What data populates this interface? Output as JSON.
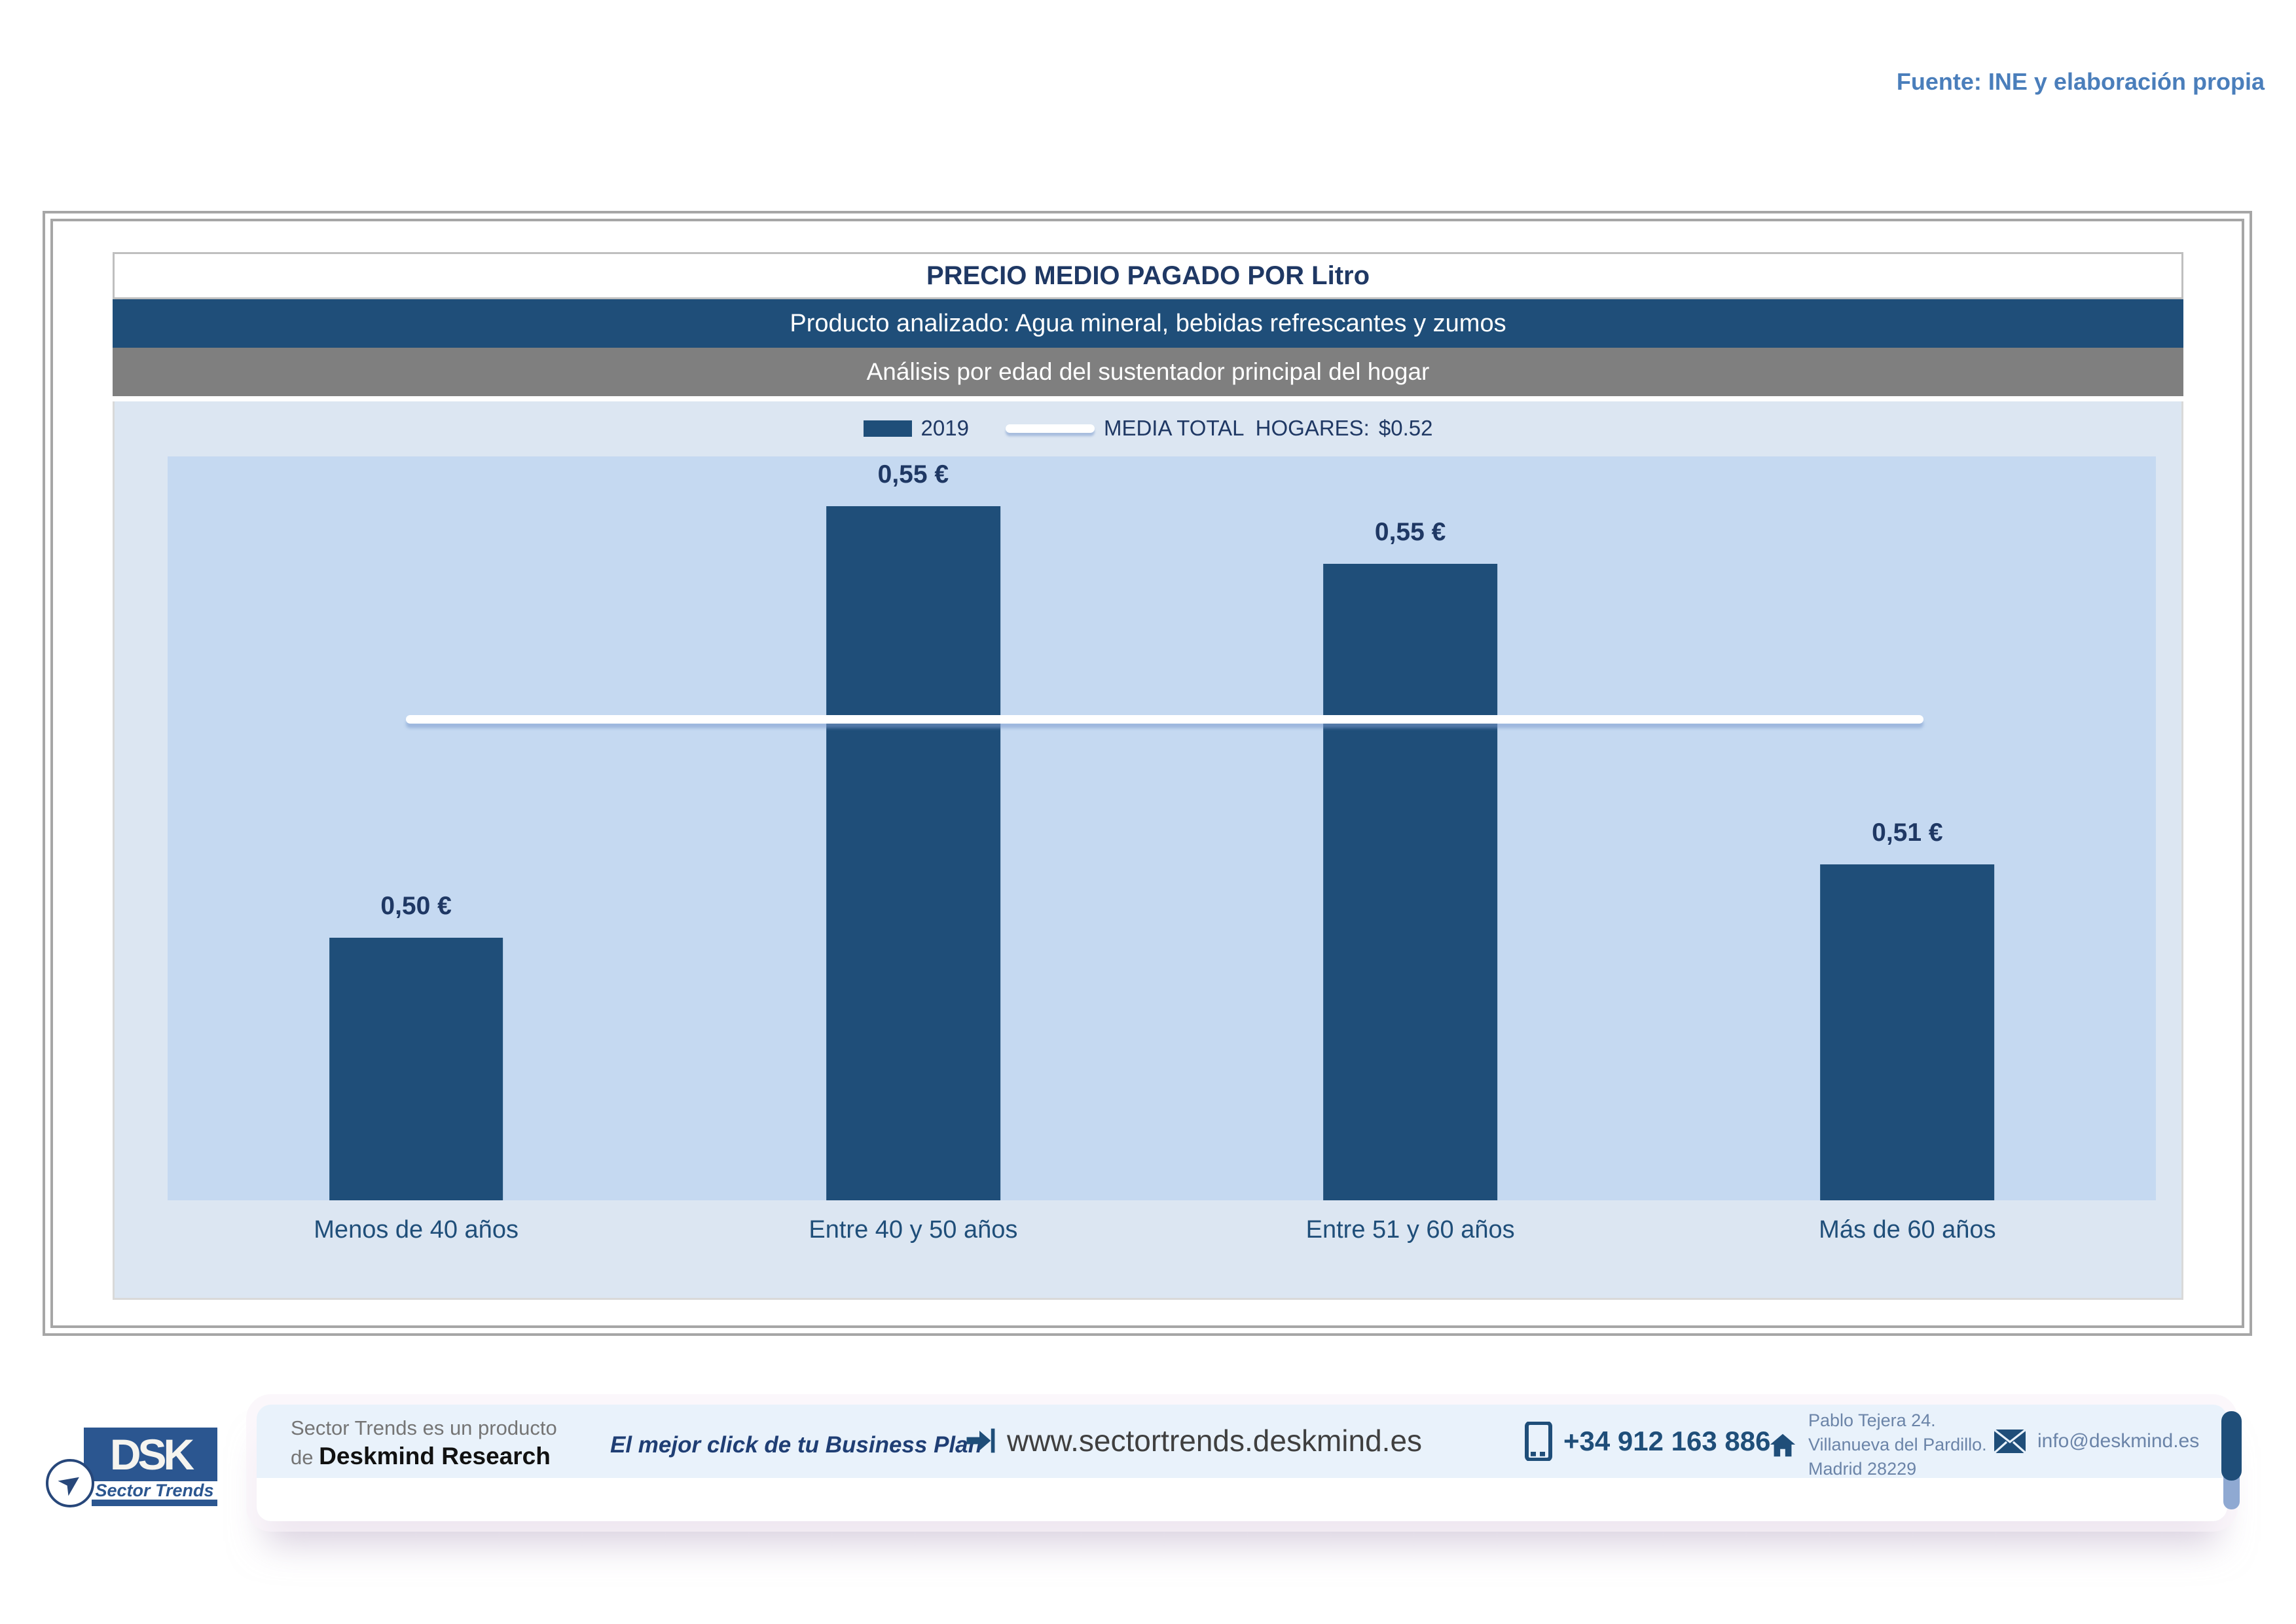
{
  "source_note": "Fuente: INE y elaboración propia",
  "header": {
    "title": "PRECIO MEDIO PAGADO POR Litro",
    "product_line": "Producto analizado: Agua mineral, bebidas refrescantes y zumos",
    "analysis_line": "Análisis por edad del sustentador principal del hogar"
  },
  "legend": {
    "series_label": "2019",
    "media_label": "MEDIA TOTAL  HOGARES:",
    "media_value": "$0.52"
  },
  "chart_data": {
    "type": "bar",
    "title": "PRECIO MEDIO PAGADO POR Litro",
    "series_name": "2019",
    "categories": [
      "Menos de 40 años",
      "Entre 40 y 50 años",
      "Entre 51  y 60 años",
      "Más de 60 años"
    ],
    "values": [
      0.5,
      0.55,
      0.55,
      0.51
    ],
    "value_labels": [
      "0,50 €",
      "0,55 €",
      "0,55 €",
      "0,51 €"
    ],
    "reference_line": {
      "label": "MEDIA TOTAL HOGARES",
      "value": 0.52,
      "display": "$0.52",
      "style": "white-line"
    },
    "y_axis_visible": false,
    "grid": false,
    "legend_position": "top-center",
    "render_hints": {
      "bar_height_pct": [
        35.3,
        93.3,
        85.6,
        45.2
      ],
      "reference_line_pct": 64.1
    }
  },
  "footer": {
    "product_of_line1": "Sector Trends es un producto",
    "product_of_prefix": "de ",
    "product_of_brand": "Deskmind Research",
    "tagline": "El mejor click de tu Business Plan",
    "website": "www.sectortrends.deskmind.es",
    "phone": "+34 912 163 886",
    "address_line1": "Pablo Tejera 24.",
    "address_line2": "Villanueva del Pardillo.",
    "address_line3": "Madrid 28229",
    "email": "info@deskmind.es"
  },
  "logo": {
    "acronym": "DSK",
    "name": "Sector Trends"
  },
  "colors": {
    "accent_dark_blue": "#1F4E79",
    "navy_text": "#1F3864",
    "band_gray": "#7F7F7F",
    "chart_bg": "#DCE6F2",
    "plot_bg": "#C5D9F1",
    "source_blue": "#4A7EBB",
    "footer_bg": "#E9F2FB"
  }
}
